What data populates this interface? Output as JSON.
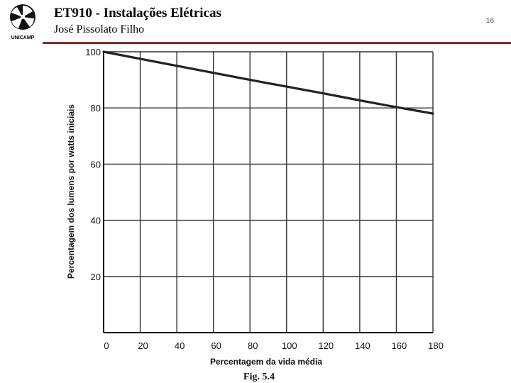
{
  "header": {
    "course_title": "ET910 - Instalações Elétricas",
    "author": "José Pissolato Filho",
    "page_number": "16",
    "logo_text": "UNICAMP"
  },
  "colors": {
    "header_rule": "#8b2a2a",
    "grid": "#333333",
    "series": "#222222"
  },
  "chart_data": {
    "type": "line",
    "title": "",
    "xlabel": "Percentagem da vida média",
    "ylabel": "Percentagem dos lumens por watts iniciais",
    "caption": "Fig. 5.4",
    "xlim": [
      0,
      180
    ],
    "ylim": [
      0,
      100
    ],
    "x_ticks": [
      0,
      20,
      40,
      60,
      80,
      100,
      120,
      140,
      160,
      180
    ],
    "y_ticks": [
      20,
      40,
      60,
      80,
      100
    ],
    "grid": true,
    "series": [
      {
        "x": [
          0,
          20,
          40,
          60,
          80,
          100,
          120,
          140,
          160,
          180
        ],
        "y": [
          100,
          97.5,
          95,
          92.5,
          90,
          87.6,
          85.2,
          82.7,
          80.3,
          78
        ]
      }
    ]
  }
}
